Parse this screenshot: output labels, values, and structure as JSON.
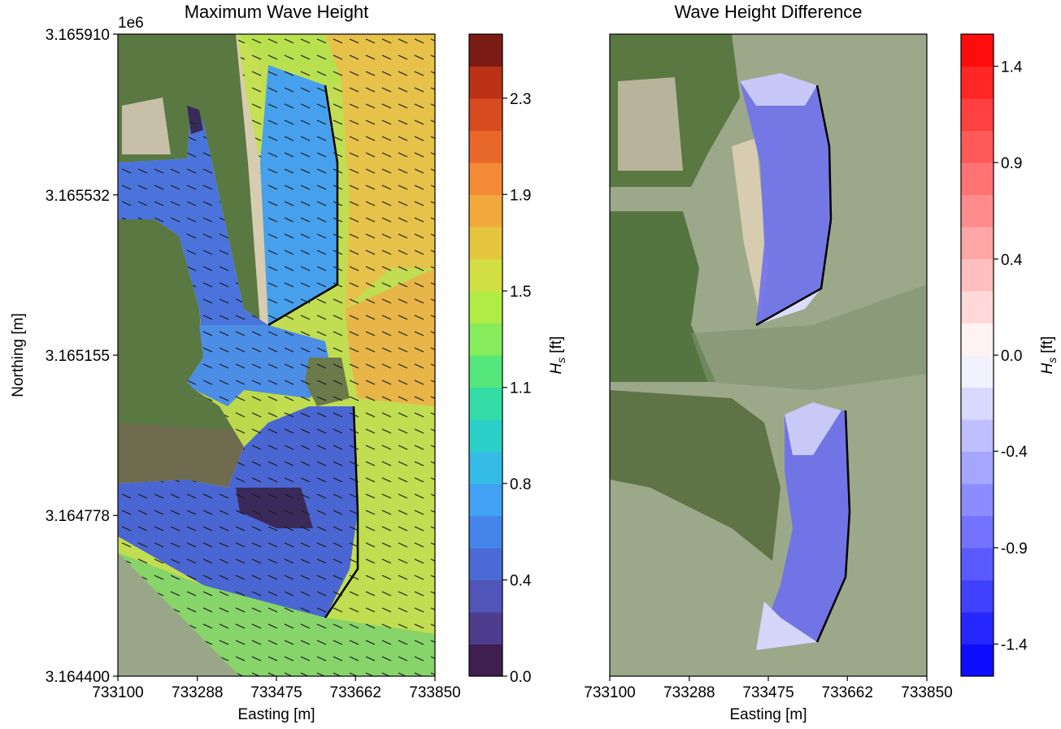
{
  "chart_data": [
    {
      "type": "contour-map",
      "title": "Maximum Wave Height",
      "x_label": "Easting [m]",
      "y_label": "Northing [m]",
      "y_offset_label": "1e6",
      "xlim": [
        733100,
        733850
      ],
      "xticks": [
        733100,
        733288,
        733475,
        733662,
        733850
      ],
      "ylim": [
        3164400,
        3165910
      ],
      "yticks": [
        {
          "value": 3164400,
          "label": "3.164400"
        },
        {
          "value": 3164778,
          "label": "3.164778"
        },
        {
          "value": 3165155,
          "label": "3.165155"
        },
        {
          "value": 3165532,
          "label": "3.165532"
        },
        {
          "value": 3165910,
          "label": "3.165910"
        }
      ],
      "colorbar": {
        "label_symbol": "H",
        "label_subscript": "s",
        "label_unit": "[ft]",
        "lim": [
          0,
          2.555
        ],
        "ticks": [
          {
            "value": 0,
            "label": "0.0"
          },
          {
            "value": 0.383,
            "label": "0.4"
          },
          {
            "value": 0.767,
            "label": "0.8"
          },
          {
            "value": 1.149,
            "label": "1.1"
          },
          {
            "value": 1.533,
            "label": "1.5"
          },
          {
            "value": 1.917,
            "label": "1.9"
          },
          {
            "value": 2.3,
            "label": "2.3"
          }
        ],
        "colors": [
          "#3f1f4f",
          "#4e3d8e",
          "#5056b8",
          "#4a6bd6",
          "#4584ea",
          "#42a1f3",
          "#35bce6",
          "#2ad0c8",
          "#33dca4",
          "#55e67c",
          "#86ec5c",
          "#b1ec44",
          "#d2df42",
          "#e6c63f",
          "#f2a93c",
          "#f48a36",
          "#e8682a",
          "#d64b1f",
          "#bc3217",
          "#7a1c14"
        ]
      }
    },
    {
      "type": "contour-map",
      "title": "Wave Height Difference",
      "x_label": "Easting [m]",
      "xlim": [
        733100,
        733850
      ],
      "xticks": [
        733100,
        733288,
        733475,
        733662,
        733850
      ],
      "ylim": [
        3164400,
        3165910
      ],
      "colorbar": {
        "label_symbol": "H",
        "label_subscript": "s",
        "label_unit": "[ft]",
        "lim": [
          -1.5,
          1.5
        ],
        "ticks": [
          {
            "value": -1.35,
            "label": "-1.4"
          },
          {
            "value": -0.9,
            "label": "-0.9"
          },
          {
            "value": -0.449,
            "label": "-0.4"
          },
          {
            "value": 0,
            "label": "0.0"
          },
          {
            "value": 0.449,
            "label": "0.4"
          },
          {
            "value": 0.9,
            "label": "0.9"
          },
          {
            "value": 1.35,
            "label": "1.4"
          }
        ],
        "colors": [
          "#0d0dff",
          "#2626ff",
          "#4040ff",
          "#5959ff",
          "#7373ff",
          "#8c8cff",
          "#a6a6ff",
          "#bfbfff",
          "#d9d9ff",
          "#f2f2ff",
          "#fff2f2",
          "#ffd9d9",
          "#ffbfbf",
          "#ffa6a6",
          "#ff8c8c",
          "#ff7373",
          "#ff5959",
          "#ff4040",
          "#ff2626",
          "#ff0d0d"
        ]
      }
    }
  ]
}
